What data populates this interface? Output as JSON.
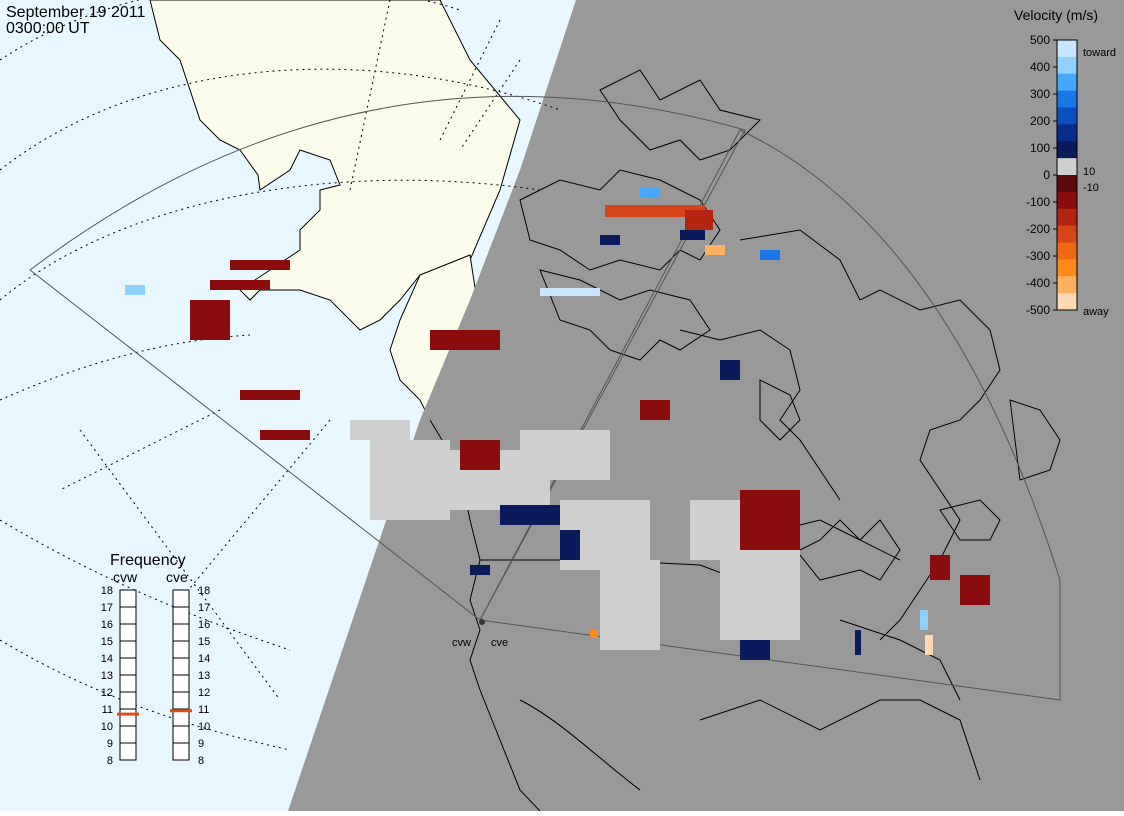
{
  "header": {
    "date": "September 19 2011",
    "time": "0300:00 UT"
  },
  "colorbar": {
    "title": "Velocity (m/s)",
    "ticks": [
      "500",
      "400",
      "300",
      "200",
      "100",
      "0",
      "-100",
      "-200",
      "-300",
      "-400",
      "-500"
    ],
    "label_toward": "toward",
    "label_away": "away",
    "label_pos": "10",
    "label_neg": "-10",
    "colors": [
      "#c8e6ff",
      "#8fd0ff",
      "#45a8ff",
      "#1a78e6",
      "#0a50c0",
      "#062c8c",
      "#0a1a5a",
      "#cfcfcf",
      "#5a0a0a",
      "#8a0c0c",
      "#b32411",
      "#d6441a",
      "#ee6a12",
      "#ff8a1a",
      "#ffb060",
      "#ffd8b4"
    ]
  },
  "frequency": {
    "title": "Frequency",
    "radars": [
      "cvw",
      "cve"
    ],
    "scale": [
      "18",
      "17",
      "16",
      "15",
      "14",
      "13",
      "12",
      "11",
      "10",
      "9",
      "8"
    ],
    "cvw_mhz": 10.7,
    "cve_mhz": 10.9,
    "marker_color": "#e04a10"
  },
  "sites": {
    "cvw_label": "cvw",
    "cve_label": "cve"
  },
  "colors": {
    "night": "#999999",
    "day_ocean": "#e8f6fe",
    "day_land": "#fbfbeb",
    "ground_scatter": "#cfcfcf",
    "toward_dark": "#0a1a5a",
    "away_dark": "#8a0c0c"
  }
}
